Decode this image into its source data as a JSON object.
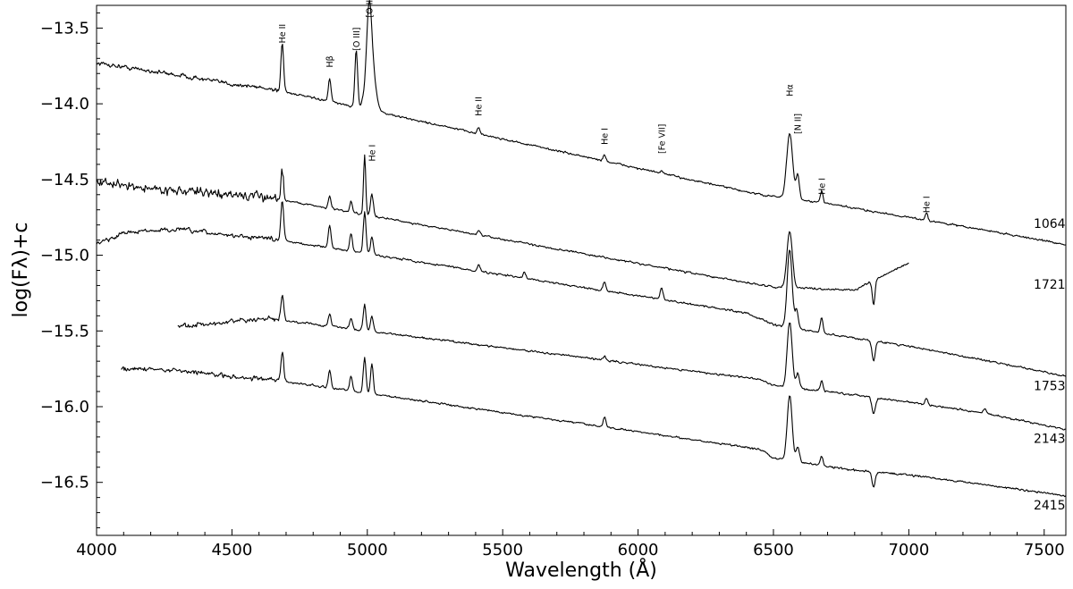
{
  "chart_data": {
    "type": "line",
    "xlabel": "Wavelength (Å)",
    "ylabel": "log(Fλ)+c",
    "xlim": [
      4000,
      7580
    ],
    "ylim": [
      -16.85,
      -13.35
    ],
    "xticks": [
      4000,
      4500,
      5000,
      5500,
      6000,
      6500,
      7000,
      7500
    ],
    "xtick_labels": [
      "4000",
      "4500",
      "5000",
      "5500",
      "6000",
      "6500",
      "7000",
      "7500"
    ],
    "yticks": [
      -13.5,
      -14.0,
      -14.5,
      -15.0,
      -15.5,
      -16.0,
      -16.5
    ],
    "ytick_labels": [
      "−13.5",
      "−14.0",
      "−14.5",
      "−15.0",
      "−15.5",
      "−16.0",
      "−16.5"
    ],
    "grid": false,
    "series": [
      {
        "name": "1064",
        "x": [
          4000,
          4150,
          4300,
          4500,
          4640,
          6450,
          6700,
          7000,
          7300,
          7580
        ],
        "y": [
          -13.73,
          -13.77,
          -13.81,
          -13.87,
          -13.9,
          -14.6,
          -14.66,
          -14.75,
          -14.84,
          -14.93
        ],
        "lines": [
          {
            "w": 4686,
            "a": 0.32,
            "s": 5
          },
          {
            "w": 4861,
            "a": 0.15,
            "s": 5
          },
          {
            "w": 4959,
            "a": 0.38,
            "s": 5
          },
          {
            "w": 5007,
            "a": 0.42,
            "s": 9
          },
          {
            "w": 5012,
            "a": 0.32,
            "s": 16
          },
          {
            "w": 5411,
            "a": 0.04,
            "s": 5
          },
          {
            "w": 5876,
            "a": 0.04,
            "s": 5
          },
          {
            "w": 6087,
            "a": 0.02,
            "s": 4
          },
          {
            "w": 6560,
            "a": 0.43,
            "s": 11
          },
          {
            "w": 6590,
            "a": 0.16,
            "s": 6
          },
          {
            "w": 6678,
            "a": 0.08,
            "s": 5
          },
          {
            "w": 7065,
            "a": 0.05,
            "s": 5
          }
        ]
      },
      {
        "name": "1721",
        "x": [
          4000,
          4200,
          4500,
          4640,
          6300,
          6500,
          6800,
          7000
        ],
        "y": [
          -14.52,
          -14.56,
          -14.6,
          -14.62,
          -15.15,
          -15.21,
          -15.23,
          -15.05
        ],
        "lines": [
          {
            "w": 4686,
            "a": 0.2,
            "s": 5
          },
          {
            "w": 4861,
            "a": 0.08,
            "s": 5
          },
          {
            "w": 4940,
            "a": 0.07,
            "s": 5
          },
          {
            "w": 4990,
            "a": 0.4,
            "s": 4
          },
          {
            "w": 5017,
            "a": 0.15,
            "s": 5
          },
          {
            "w": 5411,
            "a": 0.03,
            "s": 5
          },
          {
            "w": 6560,
            "a": 0.37,
            "s": 10
          },
          {
            "w": 6870,
            "a": -0.16,
            "s": 5
          }
        ]
      },
      {
        "name": "1753",
        "x": [
          4000,
          4100,
          4300,
          4500,
          4640,
          6400,
          6500,
          6700,
          7000,
          7300,
          7580
        ],
        "y": [
          -14.93,
          -14.85,
          -14.83,
          -14.87,
          -14.89,
          -15.38,
          -15.46,
          -15.52,
          -15.6,
          -15.7,
          -15.8
        ],
        "lines": [
          {
            "w": 4686,
            "a": 0.27,
            "s": 5
          },
          {
            "w": 4861,
            "a": 0.15,
            "s": 5
          },
          {
            "w": 4940,
            "a": 0.12,
            "s": 5
          },
          {
            "w": 4990,
            "a": 0.27,
            "s": 5
          },
          {
            "w": 5017,
            "a": 0.12,
            "s": 5
          },
          {
            "w": 5411,
            "a": 0.04,
            "s": 5
          },
          {
            "w": 5580,
            "a": 0.04,
            "s": 5
          },
          {
            "w": 5876,
            "a": 0.06,
            "s": 5
          },
          {
            "w": 6087,
            "a": 0.08,
            "s": 5
          },
          {
            "w": 6560,
            "a": 0.52,
            "s": 9
          },
          {
            "w": 6586,
            "a": 0.12,
            "s": 6
          },
          {
            "w": 6678,
            "a": 0.1,
            "s": 5
          },
          {
            "w": 6870,
            "a": -0.13,
            "s": 6
          }
        ]
      },
      {
        "name": "2143",
        "x": [
          4300,
          4500,
          4640,
          6450,
          6500,
          6700,
          7000,
          7300,
          7580
        ],
        "y": [
          -15.47,
          -15.44,
          -15.42,
          -15.82,
          -15.86,
          -15.9,
          -15.97,
          -16.05,
          -16.15
        ],
        "lines": [
          {
            "w": 4686,
            "a": 0.17,
            "s": 5
          },
          {
            "w": 4861,
            "a": 0.08,
            "s": 5
          },
          {
            "w": 4940,
            "a": 0.07,
            "s": 5
          },
          {
            "w": 4990,
            "a": 0.17,
            "s": 5
          },
          {
            "w": 5017,
            "a": 0.1,
            "s": 5
          },
          {
            "w": 5876,
            "a": 0.03,
            "s": 5
          },
          {
            "w": 6560,
            "a": 0.43,
            "s": 9
          },
          {
            "w": 6590,
            "a": 0.1,
            "s": 6
          },
          {
            "w": 6678,
            "a": 0.07,
            "s": 5
          },
          {
            "w": 6870,
            "a": -0.11,
            "s": 6
          },
          {
            "w": 7065,
            "a": 0.04,
            "s": 5
          },
          {
            "w": 7280,
            "a": 0.03,
            "s": 5
          }
        ]
      },
      {
        "name": "2415",
        "x": [
          4090,
          4300,
          4500,
          4640,
          6450,
          6500,
          6800,
          7000,
          7300,
          7580
        ],
        "y": [
          -15.75,
          -15.76,
          -15.8,
          -15.82,
          -16.28,
          -16.34,
          -16.42,
          -16.45,
          -16.52,
          -16.59
        ],
        "lines": [
          {
            "w": 4686,
            "a": 0.2,
            "s": 5
          },
          {
            "w": 4861,
            "a": 0.12,
            "s": 5
          },
          {
            "w": 4940,
            "a": 0.1,
            "s": 5
          },
          {
            "w": 4990,
            "a": 0.23,
            "s": 5
          },
          {
            "w": 5017,
            "a": 0.2,
            "s": 5
          },
          {
            "w": 5876,
            "a": 0.06,
            "s": 5
          },
          {
            "w": 6560,
            "a": 0.43,
            "s": 9
          },
          {
            "w": 6590,
            "a": 0.1,
            "s": 6
          },
          {
            "w": 6678,
            "a": 0.06,
            "s": 5
          },
          {
            "w": 6870,
            "a": -0.1,
            "s": 6
          }
        ]
      }
    ],
    "spectrum_labels": [
      {
        "text": "1064",
        "x": 7500,
        "y": -14.82
      },
      {
        "text": "1721",
        "x": 7500,
        "y": -15.22
      },
      {
        "text": "1753",
        "x": 7500,
        "y": -15.89
      },
      {
        "text": "2143",
        "x": 7500,
        "y": -16.24
      },
      {
        "text": "2415",
        "x": 7500,
        "y": -16.68
      }
    ],
    "line_annotations": [
      {
        "text": "He II",
        "x": 4686,
        "y": -13.6
      },
      {
        "text": "Hβ",
        "x": 4861,
        "y": -13.76
      },
      {
        "text": "[O III]",
        "x": 4959,
        "y": -13.65
      },
      {
        "text": "[O III]",
        "x": 5007,
        "y": -13.43
      },
      {
        "text": "He I",
        "x": 5017,
        "y": -14.38
      },
      {
        "text": "He II",
        "x": 5411,
        "y": -14.08
      },
      {
        "text": "He I",
        "x": 5876,
        "y": -14.27
      },
      {
        "text": "[Fe VII]",
        "x": 6087,
        "y": -14.33
      },
      {
        "text": "Hα",
        "x": 6560,
        "y": -13.95
      },
      {
        "text": "[N II]",
        "x": 6590,
        "y": -14.2
      },
      {
        "text": "He I",
        "x": 6678,
        "y": -14.6
      },
      {
        "text": "He I",
        "x": 7065,
        "y": -14.72
      }
    ]
  }
}
